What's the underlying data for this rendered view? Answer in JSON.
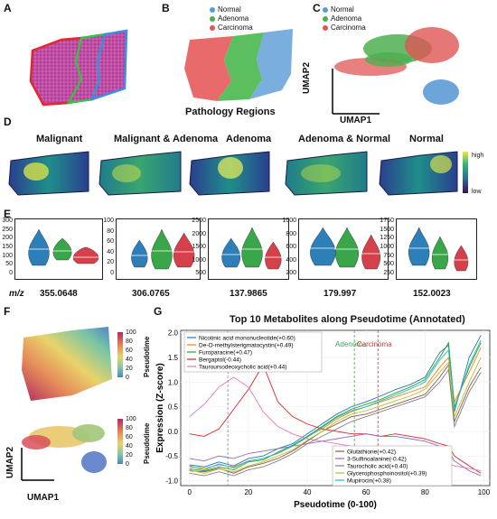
{
  "panels": {
    "a": "A",
    "b": "B",
    "c": "C",
    "d": "D",
    "e": "E",
    "f": "F",
    "g": "G"
  },
  "legend_regions": [
    {
      "label": "Normal",
      "color": "#5b9bd5"
    },
    {
      "label": "Adenoma",
      "color": "#4caf50"
    },
    {
      "label": "Carcinoma",
      "color": "#e05555"
    }
  ],
  "b_caption": "Pathology Regions",
  "umap": {
    "x": "UMAP1",
    "y": "UMAP2"
  },
  "d_titles": [
    "Malignant",
    "Malignant & Adenoma",
    "Adenoma",
    "Adenoma & Normal",
    "Normal"
  ],
  "d_colorbar": {
    "high": "high",
    "low": "low"
  },
  "e": {
    "mz_label": "m/z",
    "mz_values": [
      "355.0648",
      "306.0765",
      "137.9865",
      "179.997",
      "152.0023"
    ],
    "yticks": [
      [
        "300",
        "250",
        "200",
        "150",
        "100",
        "50",
        "0"
      ],
      [
        "100",
        "80",
        "60",
        "40",
        "20",
        "0"
      ],
      [
        "2500",
        "2000",
        "1500",
        "1000",
        "500"
      ],
      [
        "1000",
        "800",
        "600",
        "400",
        "200"
      ],
      [
        "1750",
        "1500",
        "1250",
        "1000",
        "750",
        "500",
        "250"
      ]
    ]
  },
  "f": {
    "colorbar_label": "Pseudotime",
    "ticks": [
      "100",
      "80",
      "60",
      "40",
      "20",
      "0"
    ]
  },
  "chart_data": {
    "type": "line",
    "title": "Top 10 Metabolites along Pseudotime (Annotated)",
    "xlabel": "Pseudotime (0-100)",
    "ylabel": "Expression (Z-score)",
    "xlim": [
      -3,
      102
    ],
    "ylim": [
      -1.1,
      2.05
    ],
    "xticks": [
      0,
      20,
      40,
      60,
      80,
      100
    ],
    "yticks": [
      -1.0,
      -0.5,
      0.0,
      0.5,
      1.0,
      1.5,
      2.0
    ],
    "vlines": [
      {
        "x": 13,
        "label": "",
        "color": "#7a8fa6"
      },
      {
        "x": 56,
        "label": "Adenoma",
        "color": "#3aa655"
      },
      {
        "x": 64,
        "label": "Carcinoma",
        "color": "#d23a3a"
      }
    ],
    "x": [
      0,
      5,
      10,
      15,
      20,
      25,
      30,
      35,
      40,
      45,
      50,
      55,
      60,
      65,
      70,
      75,
      80,
      85,
      88,
      90,
      95,
      99
    ],
    "series": [
      {
        "name": "Nicotinic acid mononucleotide(+0.60)",
        "color": "#1f77b4",
        "values": [
          -0.68,
          -0.72,
          -0.62,
          -0.7,
          -0.55,
          -0.5,
          -0.35,
          -0.25,
          -0.05,
          0.15,
          0.35,
          0.5,
          0.6,
          0.72,
          0.85,
          0.95,
          1.1,
          1.6,
          1.75,
          0.4,
          1.5,
          1.95
        ]
      },
      {
        "name": "De-O-methylsterigmatocystin(+0.49)",
        "color": "#ff7f0e",
        "values": [
          -0.72,
          -0.75,
          -0.68,
          -0.72,
          -0.6,
          -0.55,
          -0.45,
          -0.3,
          -0.1,
          0.05,
          0.25,
          0.4,
          0.5,
          0.6,
          0.7,
          0.8,
          0.9,
          1.3,
          1.5,
          0.6,
          1.2,
          1.7
        ]
      },
      {
        "name": "Furoparacine(+0.47)",
        "color": "#2ca02c",
        "values": [
          -0.76,
          -0.8,
          -0.72,
          -0.78,
          -0.62,
          -0.58,
          -0.42,
          -0.28,
          -0.1,
          0.1,
          0.3,
          0.45,
          0.55,
          0.65,
          0.78,
          0.9,
          1.05,
          1.5,
          1.8,
          0.5,
          1.3,
          1.8
        ]
      },
      {
        "name": "Bergaptol(-0.44)",
        "color": "#d62728",
        "values": [
          -0.05,
          -0.1,
          0.05,
          0.45,
          0.85,
          1.35,
          0.6,
          0.3,
          0.15,
          0.05,
          0.0,
          -0.05,
          -0.05,
          -0.1,
          -0.05,
          -0.1,
          -0.15,
          -0.25,
          -0.3,
          -0.5,
          -0.7,
          -0.85
        ]
      },
      {
        "name": "Tauroursodeoxycholic acid(+0.44)",
        "color": "#e377c2",
        "values": [
          0.3,
          0.55,
          0.9,
          1.1,
          0.9,
          0.4,
          0.1,
          -0.05,
          -0.15,
          -0.2,
          -0.25,
          -0.3,
          -0.35,
          -0.4,
          -0.45,
          -0.5,
          -0.55,
          -0.6,
          -0.65,
          -0.7,
          -0.75,
          -0.8
        ]
      },
      {
        "name": "Glutathione(+0.42)",
        "color": "#8c564b",
        "values": [
          -0.8,
          -0.82,
          -0.75,
          -0.85,
          -0.72,
          -0.65,
          -0.55,
          -0.4,
          -0.2,
          0.0,
          0.15,
          0.3,
          0.35,
          0.45,
          0.55,
          0.65,
          0.75,
          1.1,
          1.35,
          0.2,
          0.9,
          1.3
        ]
      },
      {
        "name": "3-Sulfinoalanine(-0.42)",
        "color": "#9467bd",
        "values": [
          -0.55,
          -0.6,
          -0.5,
          -0.55,
          -0.45,
          -0.4,
          -0.35,
          -0.3,
          -0.25,
          -0.2,
          -0.15,
          -0.1,
          -0.05,
          -0.1,
          -0.1,
          -0.15,
          -0.2,
          -0.3,
          -0.4,
          -0.6,
          -0.8,
          -0.9
        ]
      },
      {
        "name": "Taurocholic acid(+0.40)",
        "color": "#7f7f7f",
        "values": [
          -0.85,
          -0.9,
          -0.82,
          -0.9,
          -0.78,
          -0.72,
          -0.6,
          -0.45,
          -0.25,
          -0.1,
          0.05,
          0.2,
          0.3,
          0.4,
          0.5,
          0.6,
          0.7,
          1.0,
          1.25,
          0.1,
          0.8,
          1.2
        ]
      },
      {
        "name": "Glycerophosphoinositol(+0.39)",
        "color": "#bcbd22",
        "values": [
          -0.78,
          -0.85,
          -0.76,
          -0.82,
          -0.7,
          -0.62,
          -0.5,
          -0.38,
          -0.18,
          0.0,
          0.2,
          0.35,
          0.42,
          0.52,
          0.62,
          0.72,
          0.85,
          1.2,
          1.4,
          0.3,
          1.0,
          1.5
        ]
      },
      {
        "name": "Mupirocin(+0.38)",
        "color": "#17becf",
        "values": [
          -0.7,
          -0.78,
          -0.66,
          -0.74,
          -0.6,
          -0.55,
          -0.44,
          -0.3,
          -0.12,
          0.08,
          0.28,
          0.42,
          0.5,
          0.62,
          0.74,
          0.86,
          1.0,
          1.45,
          1.65,
          0.45,
          1.35,
          1.85
        ]
      }
    ]
  }
}
